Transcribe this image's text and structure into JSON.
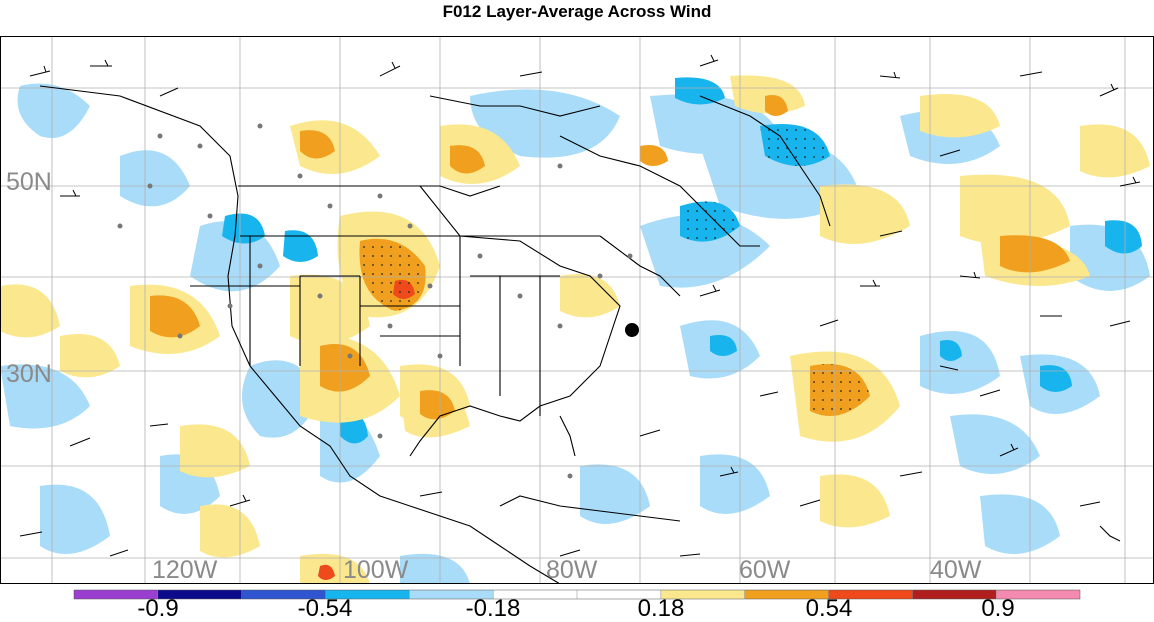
{
  "title": "F012 Layer-Average Across Wind",
  "map": {
    "lat_labels": [
      "50N",
      "30N"
    ],
    "lon_labels": [
      "120W",
      "100W",
      "80W",
      "60W",
      "40W"
    ]
  },
  "colorbar": {
    "colors": [
      "#9b3fd1",
      "#0b0b8c",
      "#2f55d0",
      "#17b4ee",
      "#a9dcf8",
      "#ffffff",
      "#ffffff",
      "#fbe88e",
      "#f0a01e",
      "#ee4a1c",
      "#b01e1e",
      "#f48ab0"
    ],
    "tick_labels": [
      "-0.9",
      "-0.54",
      "-0.18",
      "0.18",
      "0.54",
      "0.9"
    ],
    "tick_values": [
      -0.9,
      -0.54,
      -0.18,
      0.18,
      0.54,
      0.9
    ]
  }
}
